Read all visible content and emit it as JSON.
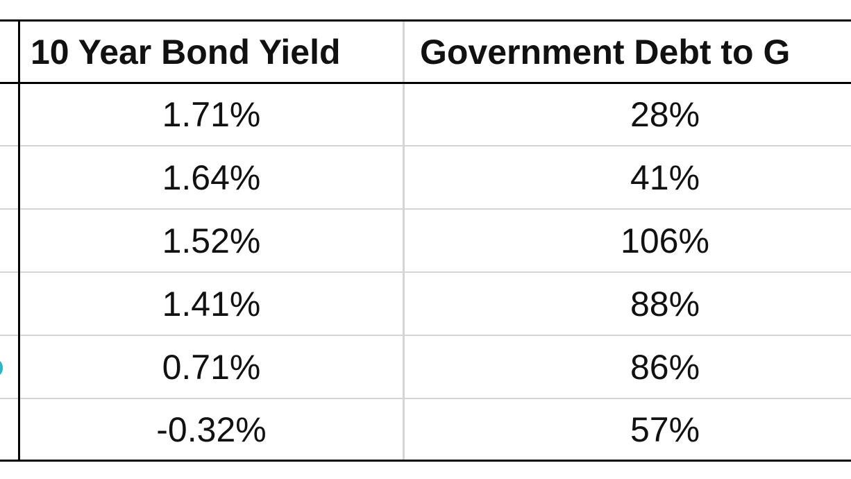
{
  "table": {
    "headers": [
      "10 Year Bond Yield",
      "Government Debt to G"
    ],
    "rows": [
      {
        "yield": "1.71%",
        "debt": "28%"
      },
      {
        "yield": "1.64%",
        "debt": "41%"
      },
      {
        "yield": "1.52%",
        "debt": "106%"
      },
      {
        "yield": "1.41%",
        "debt": "88%"
      },
      {
        "yield": "0.71%",
        "debt": "86%"
      },
      {
        "yield": "-0.32%",
        "debt": "57%"
      }
    ]
  },
  "colors": {
    "border": "#000000",
    "grid": "#d4d4d4",
    "text": "#111111",
    "accent_mark": "#2ab5c8"
  }
}
